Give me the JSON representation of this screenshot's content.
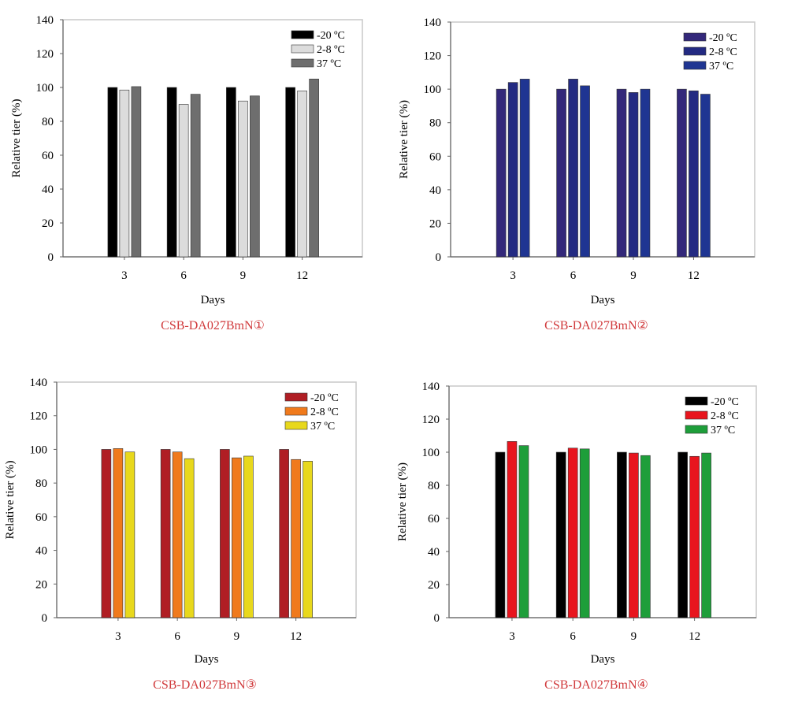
{
  "chart_data": [
    {
      "type": "bar",
      "caption": "CSB-DA027BmN①",
      "xlabel": "Days",
      "ylabel": "Relative tier (%)",
      "ylim": [
        0,
        140
      ],
      "yticks": [
        0,
        20,
        40,
        60,
        80,
        100,
        120,
        140
      ],
      "categories": [
        "3",
        "6",
        "9",
        "12"
      ],
      "legend_position": "top-right",
      "series": [
        {
          "name": "-20 ºC",
          "color": "#000000",
          "values": [
            100,
            100,
            100,
            100
          ]
        },
        {
          "name": "2-8 ºC",
          "color": "#dcdcdc",
          "values": [
            98.5,
            90,
            92,
            98
          ]
        },
        {
          "name": "37 ºC",
          "color": "#6e6e6e",
          "values": [
            100.5,
            96,
            95,
            105
          ]
        }
      ]
    },
    {
      "type": "bar",
      "caption": "CSB-DA027BmN②",
      "xlabel": "Days",
      "ylabel": "Relative tier (%)",
      "ylim": [
        0,
        140
      ],
      "yticks": [
        0,
        20,
        40,
        60,
        80,
        100,
        120,
        140
      ],
      "categories": [
        "3",
        "6",
        "9",
        "12"
      ],
      "legend_position": "top-right",
      "series": [
        {
          "name": "-20 ºC",
          "color": "#33287a",
          "values": [
            100,
            100,
            100,
            100
          ]
        },
        {
          "name": "2-8 ºC",
          "color": "#232a82",
          "values": [
            104,
            106,
            98,
            99
          ]
        },
        {
          "name": "37 ºC",
          "color": "#1f3592",
          "values": [
            106,
            102,
            100,
            97
          ]
        }
      ]
    },
    {
      "type": "bar",
      "caption": "CSB-DA027BmN③",
      "xlabel": "Days",
      "ylabel": "Relative tier (%)",
      "ylim": [
        0,
        140
      ],
      "yticks": [
        0,
        20,
        40,
        60,
        80,
        100,
        120,
        140
      ],
      "categories": [
        "3",
        "6",
        "9",
        "12"
      ],
      "legend_position": "top-right",
      "series": [
        {
          "name": "-20 ºC",
          "color": "#b01e24",
          "values": [
            100,
            100,
            100,
            100
          ]
        },
        {
          "name": "2-8 ºC",
          "color": "#f07a1c",
          "values": [
            100.5,
            98.5,
            95,
            94
          ]
        },
        {
          "name": "37 ºC",
          "color": "#e8d81c",
          "values": [
            98.5,
            94.5,
            96,
            93
          ]
        }
      ]
    },
    {
      "type": "bar",
      "caption": "CSB-DA027BmN④",
      "xlabel": "Days",
      "ylabel": "Relative tier (%)",
      "ylim": [
        0,
        140
      ],
      "yticks": [
        0,
        20,
        40,
        60,
        80,
        100,
        120,
        140
      ],
      "categories": [
        "3",
        "6",
        "9",
        "12"
      ],
      "legend_position": "top-right",
      "series": [
        {
          "name": "-20 ºC",
          "color": "#000000",
          "values": [
            100,
            100,
            100,
            100
          ]
        },
        {
          "name": "2-8 ºC",
          "color": "#e8151e",
          "values": [
            106.5,
            102.5,
            99.5,
            97.5
          ]
        },
        {
          "name": "37 ºC",
          "color": "#1e9e3a",
          "values": [
            104,
            102,
            98,
            99.5
          ]
        }
      ]
    }
  ]
}
